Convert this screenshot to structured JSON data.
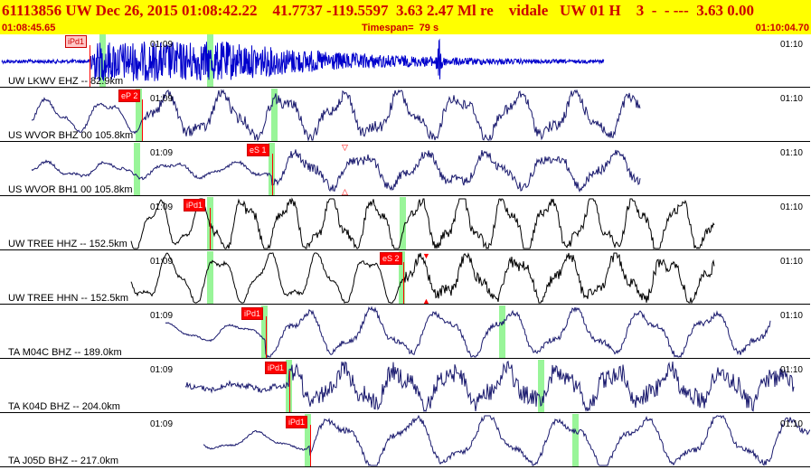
{
  "header": {
    "title": "61113856 UW Dec 26, 2015 01:08:42.22    41.7737 -119.5597  3.63 2.47 Ml re    vidale   UW 01 H    3  -  - ---  3.63 0.00",
    "start_time": "01:08:45.65",
    "timespan": "Timespan=  79 s",
    "end_time": "01:10:04.70",
    "bg_color": "#ffff00",
    "text_color": "#cc0000"
  },
  "trace_color_blue": "#0000cc",
  "trace_color_navy": "#1a1a6e",
  "trace_color_black": "#000000",
  "traces": [
    {
      "station": "UW LKWV EHZ -- 82.9km",
      "tick_left": "01:09",
      "tick_right": "01:10",
      "pick_label": "iPd1",
      "pick_style": "pink"
    },
    {
      "station": "US WVOR BHZ 00 105.8km",
      "tick_left": "01:09",
      "tick_right": "01:10",
      "pick_label": "eP 2",
      "pick_style": "red"
    },
    {
      "station": "US WVOR BH1 00 105.8km",
      "tick_left": "01:09",
      "tick_right": "01:10",
      "pick_label": "eS 1",
      "pick_style": "red"
    },
    {
      "station": "UW TREE HHZ -- 152.5km",
      "tick_left": "01:09",
      "tick_right": "01:10",
      "pick_label": "iPd1",
      "pick_style": "red"
    },
    {
      "station": "UW TREE HHN -- 152.5km",
      "tick_left": "01:09",
      "tick_right": "01:10",
      "pick_label": "eS 2",
      "pick_style": "red"
    },
    {
      "station": "TA M04C BHZ -- 189.0km",
      "tick_left": "01:09",
      "tick_right": "01:10",
      "pick_label": "iPd1",
      "pick_style": "red"
    },
    {
      "station": "TA K04D BHZ -- 204.0km",
      "tick_left": "01:09",
      "tick_right": "01:10",
      "pick_label": "iPd1",
      "pick_style": "red"
    },
    {
      "station": "TA J05D BHZ -- 217.0km",
      "tick_left": "01:09",
      "tick_right": "01:10",
      "pick_label": "iPd1",
      "pick_style": "red"
    }
  ]
}
